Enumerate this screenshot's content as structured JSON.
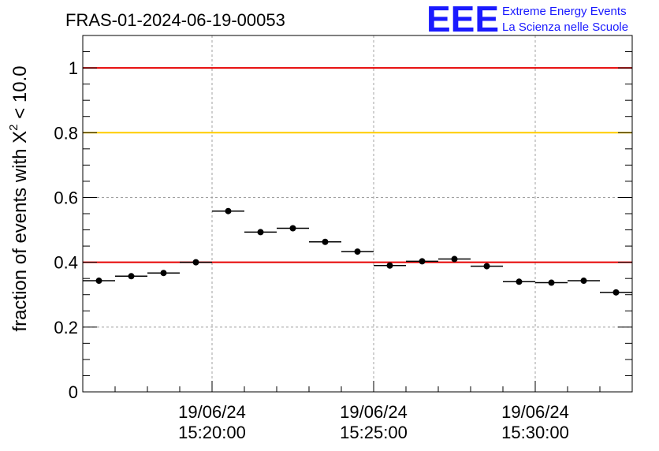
{
  "header": {
    "title": "FRAS-01-2024-06-19-00053",
    "logo_text": "EEE",
    "logo_line1": "Extreme Energy Events",
    "logo_line2": "La Scienza nelle Scuole"
  },
  "colors": {
    "red_line": "#e60000",
    "yellow_line": "#ffcc00",
    "marker": "#000000",
    "logo": "#1a1aff",
    "grid": "#a0a0a0"
  },
  "chart_data": {
    "type": "scatter",
    "title": "FRAS-01-2024-06-19-00053",
    "xlabel": "",
    "ylabel": "fraction of events with X² < 10.0",
    "ylabel_base": "fraction of events with X",
    "ylabel_sup": "2",
    "ylabel_tail": " < 10.0",
    "ylim": [
      0,
      1.1
    ],
    "yticks": [
      "0",
      "0.2",
      "0.4",
      "0.6",
      "0.8",
      "1"
    ],
    "xlim": [
      "19/06/24 15:16:00",
      "19/06/24 15:33:00"
    ],
    "xticks": [
      {
        "date": "19/06/24",
        "time": "15:20:00"
      },
      {
        "date": "19/06/24",
        "time": "15:25:00"
      },
      {
        "date": "19/06/24",
        "time": "15:30:00"
      }
    ],
    "grid": true,
    "reference_lines": [
      {
        "y": 1.0,
        "color": "red"
      },
      {
        "y": 0.8,
        "color": "yellow"
      },
      {
        "y": 0.4,
        "color": "red"
      }
    ],
    "points": [
      {
        "x": "15:16:30",
        "y": 0.343
      },
      {
        "x": "15:17:30",
        "y": 0.357
      },
      {
        "x": "15:18:30",
        "y": 0.367
      },
      {
        "x": "15:19:30",
        "y": 0.4
      },
      {
        "x": "15:20:30",
        "y": 0.558
      },
      {
        "x": "15:21:30",
        "y": 0.493
      },
      {
        "x": "15:22:30",
        "y": 0.505
      },
      {
        "x": "15:23:30",
        "y": 0.463
      },
      {
        "x": "15:24:30",
        "y": 0.433
      },
      {
        "x": "15:25:30",
        "y": 0.39
      },
      {
        "x": "15:26:30",
        "y": 0.403
      },
      {
        "x": "15:27:30",
        "y": 0.41
      },
      {
        "x": "15:28:30",
        "y": 0.388
      },
      {
        "x": "15:29:30",
        "y": 0.34
      },
      {
        "x": "15:30:30",
        "y": 0.337
      },
      {
        "x": "15:31:30",
        "y": 0.343
      },
      {
        "x": "15:32:30",
        "y": 0.307
      }
    ]
  }
}
